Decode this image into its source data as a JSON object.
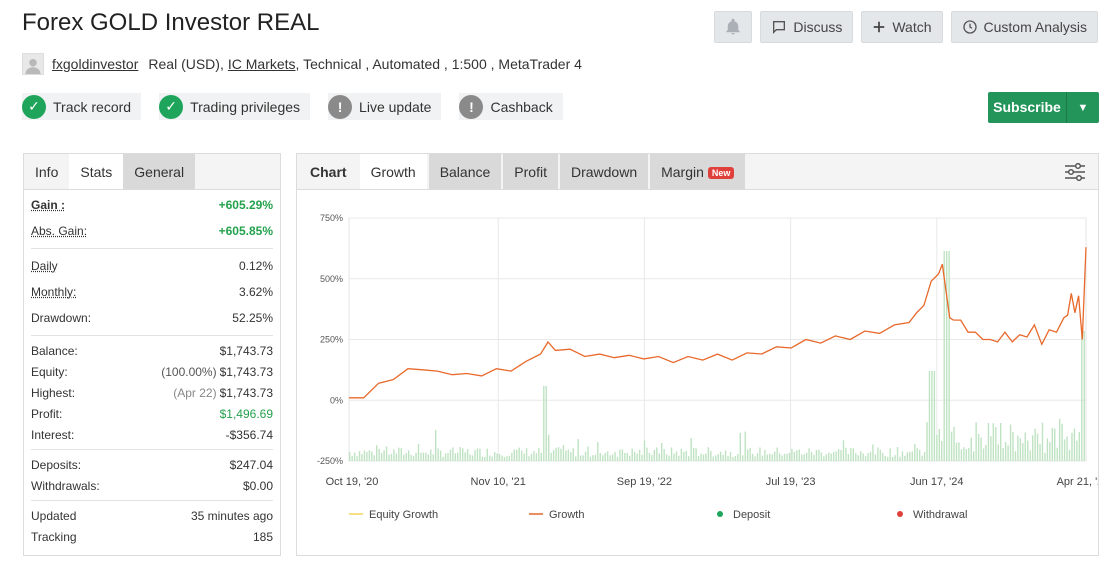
{
  "header": {
    "title": "Forex GOLD Investor REAL"
  },
  "actions": {
    "discuss": "Discuss",
    "watch": "Watch",
    "custom": "Custom Analysis"
  },
  "meta": {
    "user": "fxgoldinvestor",
    "account": "Real (USD),",
    "broker": "IC Markets",
    "details": ", Technical , Automated , 1:500 , MetaTrader 4"
  },
  "badges": [
    {
      "label": "Track record",
      "status": "ok"
    },
    {
      "label": "Trading privileges",
      "status": "ok"
    },
    {
      "label": "Live update",
      "status": "no"
    },
    {
      "label": "Cashback",
      "status": "no"
    }
  ],
  "subscribe": {
    "label": "Subscribe"
  },
  "left_tabs": [
    "Info",
    "Stats",
    "General"
  ],
  "stats": {
    "gain": {
      "k": "Gain :",
      "v": "+605.29%"
    },
    "abs_gain": {
      "k": "Abs. Gain:",
      "v": "+605.85%"
    },
    "daily": {
      "k": "Daily",
      "v": "0.12%"
    },
    "monthly": {
      "k": "Monthly:",
      "v": "3.62%"
    },
    "drawdown": {
      "k": "Drawdown:",
      "v": "52.25%"
    },
    "balance": {
      "k": "Balance:",
      "v": "$1,743.73"
    },
    "equity": {
      "k": "Equity:",
      "sub": "(100.00%)",
      "v": "$1,743.73"
    },
    "highest": {
      "k": "Highest:",
      "sub": "(Apr 22)",
      "v": "$1,743.73"
    },
    "profit": {
      "k": "Profit:",
      "v": "$1,496.69"
    },
    "interest": {
      "k": "Interest:",
      "v": "-$356.74"
    },
    "deposits": {
      "k": "Deposits:",
      "v": "$247.04"
    },
    "withdrawals": {
      "k": "Withdrawals:",
      "v": "$0.00"
    },
    "updated": {
      "k": "Updated",
      "v": "35 minutes ago"
    },
    "tracking": {
      "k": "Tracking",
      "v": "185"
    }
  },
  "chart_tabs": {
    "chart": "Chart",
    "growth": "Growth",
    "balance": "Balance",
    "profit": "Profit",
    "drawdown": "Drawdown",
    "margin": "Margin",
    "new": "New"
  },
  "chart_data": {
    "type": "line",
    "ylim": [
      -250,
      750
    ],
    "yticks": [
      "750%",
      "500%",
      "250%",
      "0%",
      "-250%"
    ],
    "xticks": [
      "Oct 19, '20",
      "Nov 10, '21",
      "Sep 19, '22",
      "Jul 19, '23",
      "Jun 17, '24",
      "Apr 21, '25"
    ],
    "series": [
      {
        "name": "Equity Growth",
        "color": "#f2d55a"
      },
      {
        "name": "Growth",
        "color": "#e8692b",
        "points": [
          [
            0,
            0
          ],
          [
            0.02,
            20
          ],
          [
            0.04,
            60
          ],
          [
            0.06,
            95
          ],
          [
            0.08,
            120
          ],
          [
            0.1,
            135
          ],
          [
            0.12,
            110
          ],
          [
            0.14,
            115
          ],
          [
            0.16,
            100
          ],
          [
            0.18,
            110
          ],
          [
            0.2,
            120
          ],
          [
            0.22,
            130
          ],
          [
            0.24,
            150
          ],
          [
            0.26,
            200
          ],
          [
            0.27,
            230
          ],
          [
            0.28,
            215
          ],
          [
            0.3,
            200
          ],
          [
            0.32,
            190
          ],
          [
            0.34,
            180
          ],
          [
            0.36,
            185
          ],
          [
            0.38,
            175
          ],
          [
            0.4,
            180
          ],
          [
            0.42,
            170
          ],
          [
            0.44,
            165
          ],
          [
            0.46,
            170
          ],
          [
            0.48,
            175
          ],
          [
            0.5,
            180
          ],
          [
            0.52,
            175
          ],
          [
            0.54,
            185
          ],
          [
            0.56,
            200
          ],
          [
            0.58,
            210
          ],
          [
            0.6,
            225
          ],
          [
            0.62,
            240
          ],
          [
            0.64,
            245
          ],
          [
            0.66,
            255
          ],
          [
            0.68,
            260
          ],
          [
            0.7,
            275
          ],
          [
            0.72,
            285
          ],
          [
            0.74,
            300
          ],
          [
            0.76,
            330
          ],
          [
            0.77,
            350
          ],
          [
            0.78,
            400
          ],
          [
            0.79,
            480
          ],
          [
            0.8,
            530
          ],
          [
            0.805,
            550
          ],
          [
            0.81,
            460
          ],
          [
            0.815,
            330
          ],
          [
            0.82,
            340
          ],
          [
            0.83,
            320
          ],
          [
            0.84,
            290
          ],
          [
            0.85,
            270
          ],
          [
            0.86,
            260
          ],
          [
            0.87,
            240
          ],
          [
            0.88,
            250
          ],
          [
            0.89,
            270
          ],
          [
            0.9,
            250
          ],
          [
            0.91,
            260
          ],
          [
            0.92,
            270
          ],
          [
            0.93,
            300
          ],
          [
            0.94,
            240
          ],
          [
            0.95,
            280
          ],
          [
            0.96,
            290
          ],
          [
            0.97,
            330
          ],
          [
            0.975,
            360
          ],
          [
            0.98,
            430
          ],
          [
            0.985,
            370
          ],
          [
            0.99,
            420
          ],
          [
            0.995,
            260
          ],
          [
            1.0,
            620
          ]
        ]
      }
    ],
    "legend": [
      "Equity Growth",
      "Growth",
      "Deposit",
      "Withdrawal"
    ],
    "legend_colors": [
      "#f2d55a",
      "#e8692b",
      "#1fa55b",
      "#e0403c"
    ]
  }
}
